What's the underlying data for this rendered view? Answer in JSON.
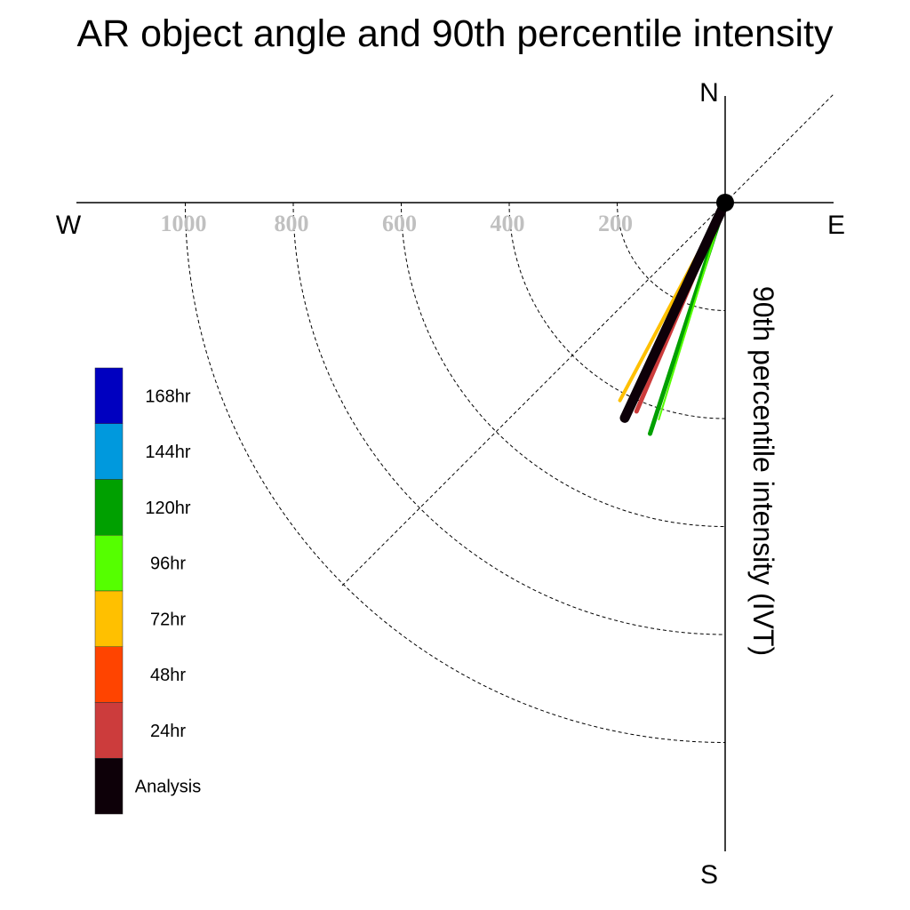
{
  "title": "AR object angle and 90th percentile intensity",
  "compass": {
    "north": "N",
    "south": "S",
    "east": "E",
    "west": "W"
  },
  "radial_label": "90th percentile intensity (IVT)",
  "chart_data": {
    "type": "polar-vector",
    "title": "AR object angle and 90th percentile intensity",
    "ylabel": "90th percentile intensity (IVT)",
    "ring_values": [
      200,
      400,
      600,
      800,
      1000
    ],
    "ring_labels": [
      "1000",
      "800",
      "600",
      "400",
      "200"
    ],
    "rmax": 1200,
    "grid": "dashed concentric rings and dashed diagonal guide",
    "legend": {
      "placement": "left",
      "entries": [
        {
          "label": "168hr",
          "color": "#0000c0"
        },
        {
          "label": "144hr",
          "color": "#0099dd"
        },
        {
          "label": "120hr",
          "color": "#00a000"
        },
        {
          "label": "96hr",
          "color": "#55ff00"
        },
        {
          "label": "72hr",
          "color": "#ffc000"
        },
        {
          "label": "48hr",
          "color": "#ff4400"
        },
        {
          "label": "24hr",
          "color": "#cc3c3c"
        },
        {
          "label": "Analysis",
          "color": "#0d0008"
        }
      ]
    },
    "series": [
      {
        "name": "72hr",
        "color": "#ffc000",
        "angle_deg": 208,
        "intensity": 415,
        "width": 4
      },
      {
        "name": "24hr",
        "color": "#cc3c3c",
        "angle_deg": 203,
        "intensity": 420,
        "width": 5
      },
      {
        "name": "120hr",
        "color": "#00a000",
        "angle_deg": 198,
        "intensity": 450,
        "width": 5
      },
      {
        "name": "96hr",
        "color": "#55ff00",
        "angle_deg": 197,
        "intensity": 420,
        "width": 2
      },
      {
        "name": "Analysis",
        "color": "#0d0008",
        "angle_deg": 205,
        "intensity": 440,
        "width": 11
      }
    ]
  }
}
